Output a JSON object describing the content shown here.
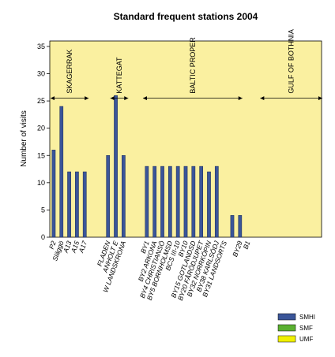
{
  "chart_data": {
    "type": "bar",
    "title": "Standard frequent stations 2004",
    "ylabel": "Number of visits",
    "xlabel": "",
    "ylim": [
      0,
      36
    ],
    "yticks": [
      0,
      5,
      10,
      15,
      20,
      25,
      30,
      35
    ],
    "grid": false,
    "legend_position": "bottom-right",
    "colors": {
      "plot_bg": "#faf0a0",
      "bar": "#3a5599",
      "SMHI": "#3a5599",
      "SMF": "#5ab030",
      "UMF": "#f0f000"
    },
    "categories": [
      "P2",
      "Släggö",
      "A13",
      "A15",
      "A17",
      "",
      "",
      "FLADEN",
      "ANHOLT E",
      "W LANDSKRONA",
      "",
      "",
      "BY1",
      "BY2 ARKONA",
      "BY4 CHRISTIANSÖ",
      "BY5 BORNHOLMSD",
      "BCS III-10",
      "BY10",
      "BY15 GOTLANDSD",
      "BY20 FÅRÖDJUPET",
      "BY32 NORRKÖPIN",
      "BY38 KARLSÖDJ",
      "BY31 LANDSORTS",
      "",
      "BY29",
      "B1",
      "",
      "",
      "",
      "",
      "",
      "",
      "",
      "",
      ""
    ],
    "series": [
      {
        "name": "SMHI",
        "values": [
          16,
          24,
          12,
          12,
          12,
          0,
          0,
          15,
          26,
          15,
          0,
          0,
          13,
          13,
          13,
          13,
          13,
          13,
          13,
          13,
          12,
          13,
          0,
          4,
          4,
          0,
          0,
          0,
          0,
          0,
          0,
          0,
          0,
          0,
          0
        ]
      }
    ],
    "legend": [
      "SMHI",
      "SMF",
      "UMF"
    ],
    "regions": [
      {
        "label": "SKAGERRAK",
        "from": -0.4,
        "to": 4.5
      },
      {
        "label": "KATTEGAT",
        "from": 7.3,
        "to": 9.6
      },
      {
        "label": "BALTIC PROPER",
        "from": 11.5,
        "to": 24.3
      },
      {
        "label": "GULF OF BOTHNIA",
        "from": 26.6,
        "to": 34.6
      }
    ],
    "region_level": 25.5
  }
}
